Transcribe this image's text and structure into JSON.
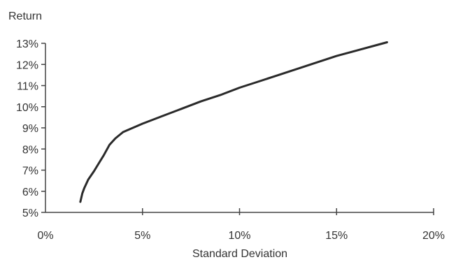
{
  "chart_data": {
    "type": "line",
    "title": "",
    "xlabel": "Standard Deviation",
    "ylabel": "Return",
    "xlim": [
      0,
      20
    ],
    "ylim": [
      5,
      13
    ],
    "x_ticks": [
      0,
      5,
      10,
      15,
      20
    ],
    "x_tick_labels": [
      "0%",
      "5%",
      "10%",
      "15%",
      "20%"
    ],
    "y_ticks": [
      5,
      6,
      7,
      8,
      9,
      10,
      11,
      12,
      13
    ],
    "y_tick_labels": [
      "5%",
      "6%",
      "7%",
      "8%",
      "9%",
      "10%",
      "11%",
      "12%",
      "13%"
    ],
    "grid": false,
    "series": [
      {
        "x": [
          1.8,
          1.9,
          2.0,
          2.2,
          2.5,
          2.8,
          3.0,
          3.3,
          3.6,
          4.0,
          4.5,
          5.0,
          6.0,
          7.0,
          8.0,
          9.0,
          10.0,
          11.0,
          12.0,
          13.0,
          14.0,
          15.0,
          16.0,
          17.0,
          17.6
        ],
        "y": [
          5.5,
          5.9,
          6.15,
          6.55,
          6.95,
          7.4,
          7.7,
          8.2,
          8.5,
          8.8,
          9.0,
          9.2,
          9.55,
          9.9,
          10.25,
          10.55,
          10.9,
          11.2,
          11.5,
          11.8,
          12.1,
          12.4,
          12.65,
          12.9,
          13.05
        ]
      }
    ],
    "colors": {
      "line": "#2a2a2a",
      "axis": "#444444",
      "text": "#333333"
    }
  }
}
